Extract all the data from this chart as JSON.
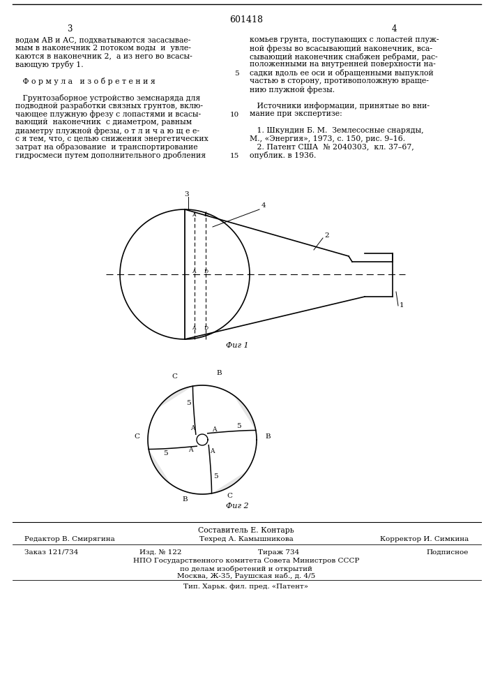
{
  "bg_color": "#ffffff",
  "patent_number": "601418",
  "page_left": "3",
  "page_right": "4",
  "left_col_lines": [
    "водам АВ и АС, подхватываются засасывае-",
    "мым в наконечник 2 потоком воды  и  увле-",
    "каются в наконечник 2,  а из него во всасы-",
    "вающую трубу 1.",
    "",
    "   Ф о р м у л а   и з о б р е т е н и я",
    "",
    "   Грунтозаборное устройство земснаряда для",
    "подводной разработки связных грунтов, вклю-",
    "чающее плужную фрезу с лопастями и всасы-",
    "вающий  наконечник  с диаметром, равным",
    "диаметру плужной фрезы, о т л и ч а ю щ е е-",
    "с я тем, что, с целью снижения энергетических",
    "затрат на образование  и транспортирование",
    "гидросмеси путем дополнительного дробления"
  ],
  "right_col_lines": [
    "комьев грунта, поступающих с лопастей плуж-",
    "ной фрезы во всасывающий наконечник, вса-",
    "сывающий наконечник снабжен ребрами, рас-",
    "положенными на внутренней поверхности на-",
    "садки вдоль ее оси и обращенными выпуклой",
    "частью в сторону, противоположную враще-",
    "нию плужной фрезы.",
    "",
    "   Источники информации, принятые во вни-",
    "мание при экспертизе:",
    "",
    "   1. Шкундин Б. М.  Землесосные снаряды,",
    "М., «Энергия», 1973, с. 150, рис. 9–16.",
    "   2. Патент США  № 2040303,  кл. 37–67,",
    "опублик. в 1936."
  ],
  "line_numbers": [
    {
      "row": 4,
      "text": "5"
    },
    {
      "row": 9,
      "text": "10"
    },
    {
      "row": 14,
      "text": "15"
    }
  ],
  "fig1_caption": "Фиг 1",
  "fig2_caption": "Фиг 2",
  "footer_composer": "Составитель Е. Контарь",
  "footer_editor": "Редактор В. Смирягина",
  "footer_techred": "Техред А. Камышникова",
  "footer_corrector": "Корректор И. Симкина",
  "footer_order": "Заказ 121/734",
  "footer_pub": "Изд. № 122",
  "footer_print_run": "Тираж 734",
  "footer_signed": "Подписное",
  "footer_org": "НПО Государственного комитета Совета Министров СССР",
  "footer_dept": "по делам изобретений и открытий",
  "footer_addr": "Москва, Ж-35, Раушская наб., д. 4/5",
  "footer_print_house": "Тип. Харьк. фил. пред. «Патент»"
}
